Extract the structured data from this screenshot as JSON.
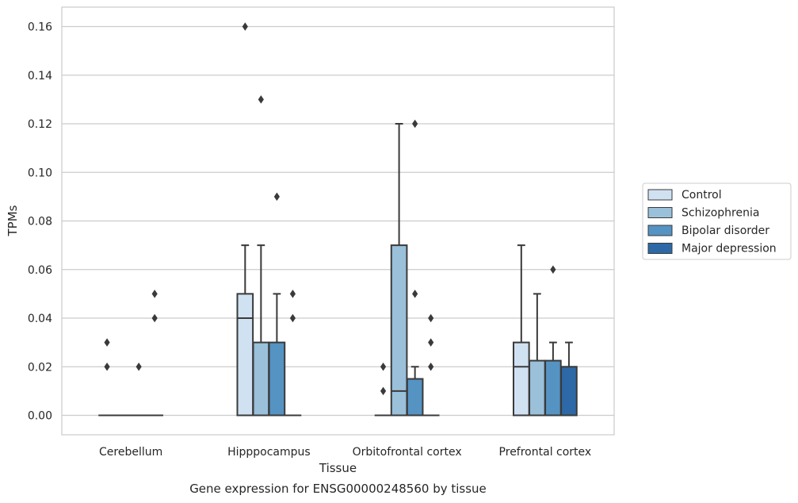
{
  "chart_data": {
    "type": "boxplot",
    "title": "",
    "caption": "Gene expression for ENSG00000248560 by tissue",
    "xlabel": "Tissue",
    "ylabel": "TPMs",
    "ylim": [
      -0.008,
      0.168
    ],
    "yticks": [
      0.0,
      0.02,
      0.04,
      0.06,
      0.08,
      0.1,
      0.12,
      0.14,
      0.16
    ],
    "ytick_labels": [
      "0.00",
      "0.02",
      "0.04",
      "0.06",
      "0.08",
      "0.10",
      "0.12",
      "0.14",
      "0.16"
    ],
    "categories": [
      "Cerebellum",
      "Hipppocampus",
      "Orbitofrontal cortex",
      "Prefrontal cortex"
    ],
    "grid": "horizontal",
    "legend_position": "right",
    "series": [
      {
        "name": "Control",
        "color": "#d0e1f2",
        "boxes": [
          {
            "whislo": 0,
            "q1": 0,
            "med": 0,
            "q3": 0,
            "whishi": 0,
            "fliers": [
              0.02,
              0.03
            ]
          },
          {
            "whislo": 0,
            "q1": 0,
            "med": 0.04,
            "q3": 0.05,
            "whishi": 0.07,
            "fliers": [
              0.16
            ]
          },
          {
            "whislo": 0,
            "q1": 0,
            "med": 0,
            "q3": 0,
            "whishi": 0,
            "fliers": [
              0.01,
              0.02
            ]
          },
          {
            "whislo": 0,
            "q1": 0,
            "med": 0.02,
            "q3": 0.03,
            "whishi": 0.07,
            "fliers": []
          }
        ]
      },
      {
        "name": "Schizophrenia",
        "color": "#9ac0da",
        "boxes": [
          {
            "whislo": 0,
            "q1": 0,
            "med": 0,
            "q3": 0,
            "whishi": 0,
            "fliers": []
          },
          {
            "whislo": 0,
            "q1": 0,
            "med": 0,
            "q3": 0.03,
            "whishi": 0.07,
            "fliers": [
              0.13
            ]
          },
          {
            "whislo": 0,
            "q1": 0,
            "med": 0.01,
            "q3": 0.07,
            "whishi": 0.12,
            "fliers": []
          },
          {
            "whislo": 0,
            "q1": 0,
            "med": 0,
            "q3": 0.0225,
            "whishi": 0.05,
            "fliers": []
          }
        ]
      },
      {
        "name": "Bipolar disorder",
        "color": "#5593c2",
        "boxes": [
          {
            "whislo": 0,
            "q1": 0,
            "med": 0,
            "q3": 0,
            "whishi": 0,
            "fliers": [
              0.02
            ]
          },
          {
            "whislo": 0,
            "q1": 0,
            "med": 0,
            "q3": 0.03,
            "whishi": 0.05,
            "fliers": [
              0.09
            ]
          },
          {
            "whislo": 0,
            "q1": 0,
            "med": 0,
            "q3": 0.015,
            "whishi": 0.02,
            "fliers": [
              0.05,
              0.12
            ]
          },
          {
            "whislo": 0,
            "q1": 0,
            "med": 0,
            "q3": 0.0225,
            "whishi": 0.03,
            "fliers": [
              0.06
            ]
          }
        ]
      },
      {
        "name": "Major depression",
        "color": "#2d69a6",
        "boxes": [
          {
            "whislo": 0,
            "q1": 0,
            "med": 0,
            "q3": 0,
            "whishi": 0,
            "fliers": [
              0.04,
              0.05
            ]
          },
          {
            "whislo": 0,
            "q1": 0,
            "med": 0,
            "q3": 0,
            "whishi": 0,
            "fliers": [
              0.04,
              0.05
            ]
          },
          {
            "whislo": 0,
            "q1": 0,
            "med": 0,
            "q3": 0,
            "whishi": 0,
            "fliers": [
              0.02,
              0.03,
              0.04
            ]
          },
          {
            "whislo": 0,
            "q1": 0,
            "med": 0,
            "q3": 0.02,
            "whishi": 0.03,
            "fliers": []
          }
        ]
      }
    ]
  }
}
